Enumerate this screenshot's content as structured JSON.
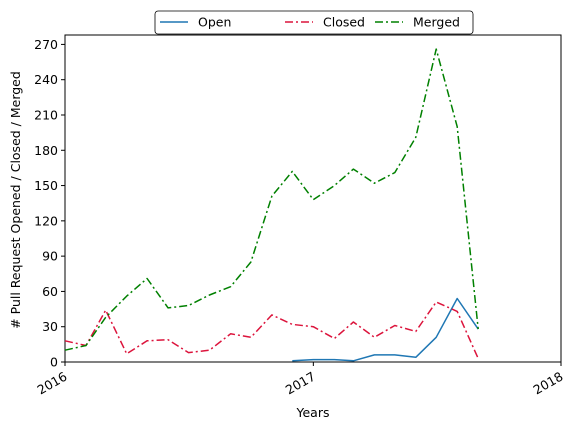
{
  "chart_data": {
    "type": "line",
    "xlabel": "Years",
    "ylabel": "# Pull Request Opened / Closed / Merged",
    "x_ticks": [
      "2016",
      "2017",
      "2018"
    ],
    "y_ticks": [
      0,
      30,
      60,
      90,
      120,
      150,
      180,
      210,
      240,
      270
    ],
    "xlim": [
      "2016-01-01",
      "2018-01-01"
    ],
    "ylim": [
      0,
      278
    ],
    "legend_position": "top-center",
    "series": [
      {
        "name": "Open",
        "color": "#1f77b4",
        "style": "solid",
        "x": [
          "2016-12-01",
          "2017-01-01",
          "2017-02-01",
          "2017-03-01",
          "2017-04-01",
          "2017-05-01",
          "2017-06-01",
          "2017-07-01",
          "2017-08-01",
          "2017-09-01"
        ],
        "values": [
          1,
          2,
          2,
          1,
          6,
          6,
          4,
          21,
          54,
          28
        ]
      },
      {
        "name": "Closed",
        "color": "#dc143c",
        "style": "dashdot",
        "x": [
          "2016-01-01",
          "2016-02-01",
          "2016-03-01",
          "2016-04-01",
          "2016-05-01",
          "2016-06-01",
          "2016-07-01",
          "2016-08-01",
          "2016-09-01",
          "2016-10-01",
          "2016-11-01",
          "2016-12-01",
          "2017-01-01",
          "2017-02-01",
          "2017-03-01",
          "2017-04-01",
          "2017-05-01",
          "2017-06-01",
          "2017-07-01",
          "2017-08-01",
          "2017-09-01"
        ],
        "values": [
          18,
          14,
          44,
          7,
          18,
          19,
          8,
          10,
          24,
          21,
          40,
          32,
          30,
          20,
          34,
          21,
          31,
          26,
          51,
          43,
          3
        ]
      },
      {
        "name": "Merged",
        "color": "#008000",
        "style": "dashdot",
        "x": [
          "2016-01-01",
          "2016-02-01",
          "2016-03-01",
          "2016-04-01",
          "2016-05-01",
          "2016-06-01",
          "2016-07-01",
          "2016-08-01",
          "2016-09-01",
          "2016-10-01",
          "2016-11-01",
          "2016-12-01",
          "2017-01-01",
          "2017-02-01",
          "2017-03-01",
          "2017-04-01",
          "2017-05-01",
          "2017-06-01",
          "2017-07-01",
          "2017-08-01",
          "2017-09-01"
        ],
        "values": [
          10,
          14,
          38,
          56,
          71,
          46,
          48,
          57,
          64,
          85,
          141,
          162,
          138,
          150,
          164,
          152,
          161,
          191,
          266,
          200,
          28
        ]
      }
    ]
  }
}
